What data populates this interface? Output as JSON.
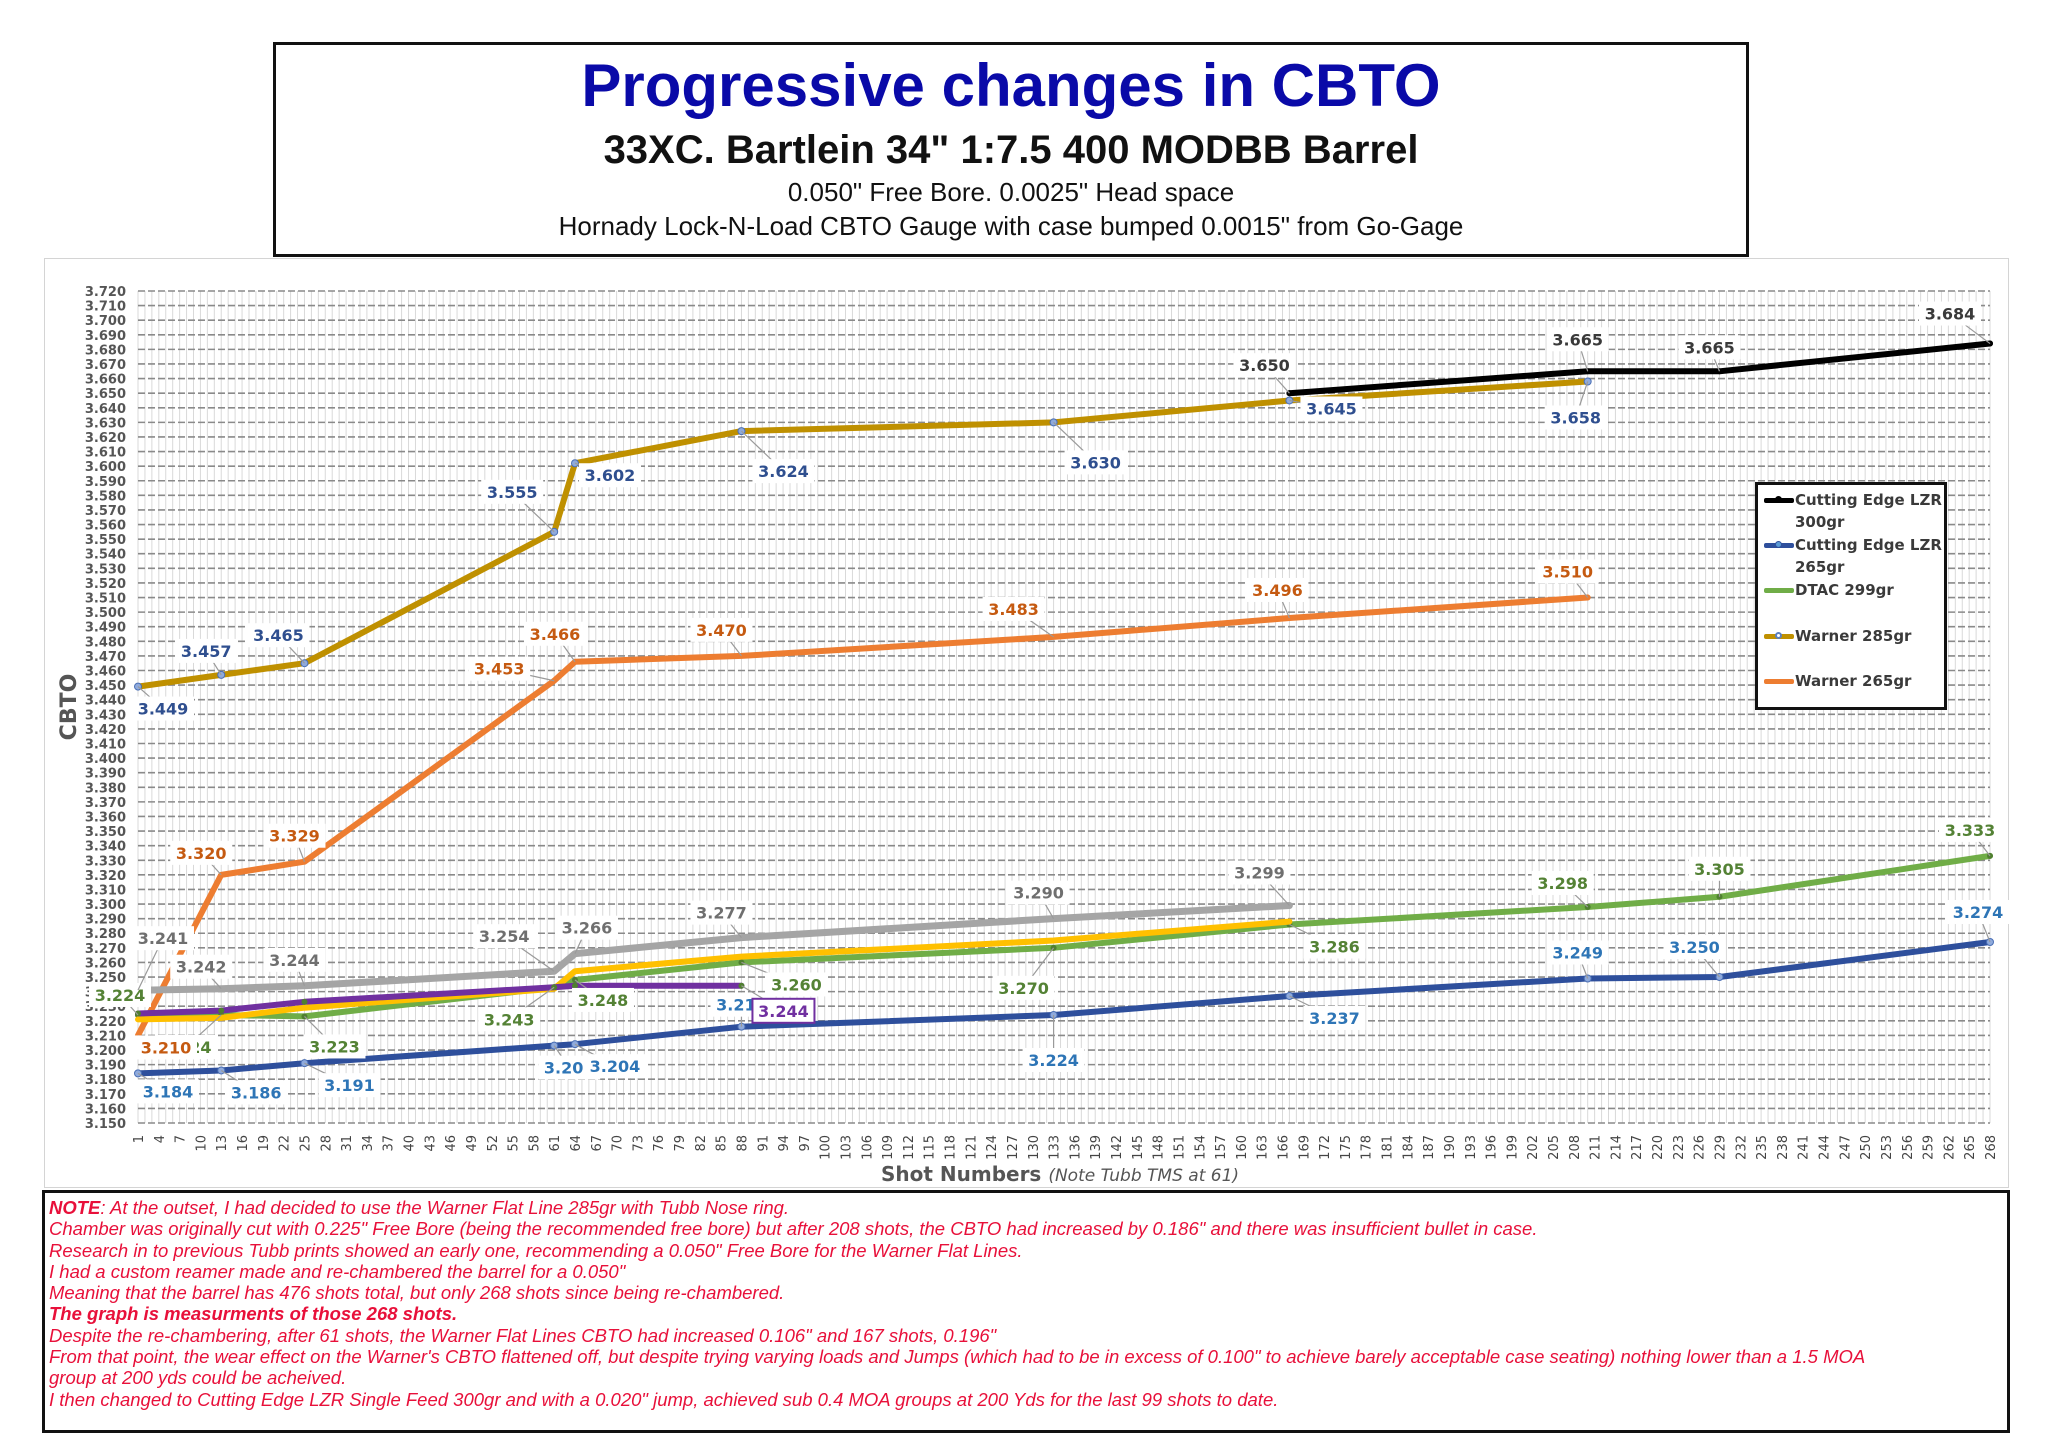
{
  "header": {
    "title": "Progressive changes in CBTO",
    "subtitle": "33XC. Bartlein 34\" 1:7.5 400 MODBB Barrel",
    "line1": "0.050\" Free Bore. 0.0025\" Head space",
    "line2": "Hornady Lock-N-Load CBTO Gauge with case bumped 0.0015\" from Go-Gage"
  },
  "chart_data": {
    "type": "line",
    "title": "Progressive changes in CBTO",
    "xlabel": "Shot Numbers",
    "xlabel_note": "(Note Tubb TMS at 61)",
    "ylabel": "CBTO",
    "xlim": [
      1,
      268
    ],
    "ylim": [
      3.15,
      3.72
    ],
    "y_tick_step": 0.01,
    "x_tick_start": 1,
    "x_tick_step": 3,
    "grid": true,
    "legend_position": "right",
    "series": [
      {
        "name": "Cutting Edge LZR 300gr",
        "color": "#000000",
        "label_color": "#3a3a3a",
        "in_legend": true,
        "marker": "dot",
        "points": [
          [
            167,
            3.65
          ],
          [
            210,
            3.665
          ],
          [
            229,
            3.665
          ],
          [
            268,
            3.684
          ]
        ],
        "labels": [
          "3.650",
          "3.665",
          "3.665",
          "3.684"
        ]
      },
      {
        "name": "Cutting Edge LZR 265gr",
        "color": "#2e4f9c",
        "label_color": "#2e75b6",
        "in_legend": true,
        "marker": "circle",
        "points": [
          [
            1,
            3.184
          ],
          [
            13,
            3.186
          ],
          [
            25,
            3.191
          ],
          [
            61,
            3.203
          ],
          [
            64,
            3.204
          ],
          [
            88,
            3.216
          ],
          [
            133,
            3.224
          ],
          [
            167,
            3.237
          ],
          [
            210,
            3.249
          ],
          [
            229,
            3.25
          ],
          [
            268,
            3.274
          ]
        ],
        "labels": [
          "3.184",
          "3.186",
          "3.191",
          "3.203",
          "3.204",
          "3.216",
          "3.224",
          "3.237",
          "3.249",
          "3.250",
          "3.274"
        ]
      },
      {
        "name": "DTAC 299gr",
        "color": "#70ad47",
        "label_color": "#548235",
        "in_legend": true,
        "marker": "dot",
        "points": [
          [
            1,
            3.224
          ],
          [
            13,
            3.224
          ],
          [
            25,
            3.223
          ],
          [
            61,
            3.243
          ],
          [
            64,
            3.248
          ],
          [
            88,
            3.26
          ],
          [
            133,
            3.27
          ],
          [
            167,
            3.286
          ],
          [
            210,
            3.298
          ],
          [
            229,
            3.305
          ],
          [
            268,
            3.333
          ]
        ],
        "labels": [
          "3.224",
          "3.224",
          "3.223",
          "3.243",
          "3.248",
          "3.260",
          "3.270",
          "3.286",
          "3.298",
          "3.305",
          "3.333"
        ]
      },
      {
        "name": "Warner 285gr",
        "color": "#bf9000",
        "label_color": "#2f4f8f",
        "in_legend": true,
        "marker": "circle",
        "points": [
          [
            1,
            3.449
          ],
          [
            13,
            3.457
          ],
          [
            25,
            3.465
          ],
          [
            61,
            3.555
          ],
          [
            64,
            3.602
          ],
          [
            88,
            3.624
          ],
          [
            133,
            3.63
          ],
          [
            167,
            3.645
          ],
          [
            210,
            3.658
          ]
        ],
        "labels": [
          "3.449",
          "3.457",
          "3.465",
          "3.555",
          "3.602",
          "3.624",
          "3.630",
          "3.645",
          "3.658"
        ]
      },
      {
        "name": "Warner 265gr",
        "color": "#ed7d31",
        "label_color": "#c55a11",
        "in_legend": true,
        "marker": "none",
        "points": [
          [
            1,
            3.21
          ],
          [
            13,
            3.32
          ],
          [
            25,
            3.329
          ],
          [
            61,
            3.453
          ],
          [
            64,
            3.466
          ],
          [
            88,
            3.47
          ],
          [
            133,
            3.483
          ],
          [
            167,
            3.496
          ],
          [
            210,
            3.51
          ]
        ],
        "labels": [
          "3.210",
          "3.320",
          "3.329",
          "3.453",
          "3.466",
          "3.470",
          "3.483",
          "3.496",
          "3.510"
        ]
      },
      {
        "name": "Gray series (unlabeled)",
        "color": "#a5a5a5",
        "label_color": "#6f6f6f",
        "in_legend": false,
        "marker": "none",
        "points": [
          [
            1,
            3.241
          ],
          [
            13,
            3.242
          ],
          [
            25,
            3.244
          ],
          [
            61,
            3.254
          ],
          [
            64,
            3.266
          ],
          [
            88,
            3.277
          ],
          [
            133,
            3.29
          ],
          [
            167,
            3.299
          ]
        ],
        "labels": [
          "3.241",
          "3.242",
          "3.244",
          "3.254",
          "3.266",
          "3.277",
          "3.290",
          "3.299"
        ]
      },
      {
        "name": "Yellow series (unlabeled)",
        "color": "#ffc000",
        "label_color": "#bf9000",
        "in_legend": false,
        "marker": "none",
        "points": [
          [
            1,
            3.221
          ],
          [
            13,
            3.222
          ],
          [
            25,
            3.229
          ],
          [
            61,
            3.242
          ],
          [
            64,
            3.254
          ],
          [
            88,
            3.264
          ],
          [
            133,
            3.275
          ],
          [
            167,
            3.288
          ]
        ],
        "labels": []
      },
      {
        "name": "Purple series (unlabeled)",
        "color": "#7030a0",
        "label_color": "#7030a0",
        "in_legend": false,
        "marker": "dot",
        "points": [
          [
            1,
            3.225
          ],
          [
            13,
            3.227
          ],
          [
            25,
            3.233
          ],
          [
            61,
            3.243
          ],
          [
            64,
            3.244
          ],
          [
            88,
            3.244
          ]
        ],
        "labels": [
          "3.244"
        ]
      }
    ]
  },
  "legend": {
    "items": [
      {
        "label": "Cutting Edge LZR 300gr",
        "color": "#000000",
        "dot": "#000000"
      },
      {
        "label": "Cutting Edge LZR 265gr",
        "color": "#2e4f9c",
        "dot": "#5b9bd5"
      },
      {
        "label": "DTAC 299gr",
        "color": "#70ad47",
        "dot": "#70ad47"
      },
      {
        "label": "Warner 285gr",
        "color": "#bf9000",
        "dot": "#5b7fc0"
      },
      {
        "label": "Warner 265gr",
        "color": "#ed7d31",
        "dot": "#ed7d31"
      }
    ]
  },
  "notes": {
    "prefix": "NOTE",
    "lines": [
      ": At the outset, I had decided to use the Warner Flat Line 285gr with Tubb Nose ring.",
      "Chamber was originally cut with 0.225\" Free Bore (being the recommended free bore) but after 208 shots, the CBTO had increased by 0.186\" and there was insufficient bullet in case.",
      "Research in to previous Tubb prints showed an early one, recommending a 0.050\" Free Bore for the Warner Flat Lines.",
      "I had a custom reamer made and re-chambered the barrel for a 0.050\"",
      "Meaning that the barrel has 476 shots total, but only 268 shots since being re-chambered.",
      "The graph is measurments of those 268 shots.",
      "Despite the re-chambering, after 61 shots, the Warner Flat Lines CBTO had increased 0.106\" and 167 shots, 0.196\"",
      "From that point, the wear effect on the Warner's CBTO flattened off, but despite trying varying loads and Jumps (which had to be in excess of 0.100\" to achieve barely acceptable case seating) nothing lower than a 1.5 MOA",
      "group at 200 yds could be acheived.",
      "I then changed to Cutting Edge LZR Single Feed 300gr and with a 0.020\" jump, achieved sub 0.4 MOA groups at 200 Yds for the last 99 shots to date."
    ]
  }
}
